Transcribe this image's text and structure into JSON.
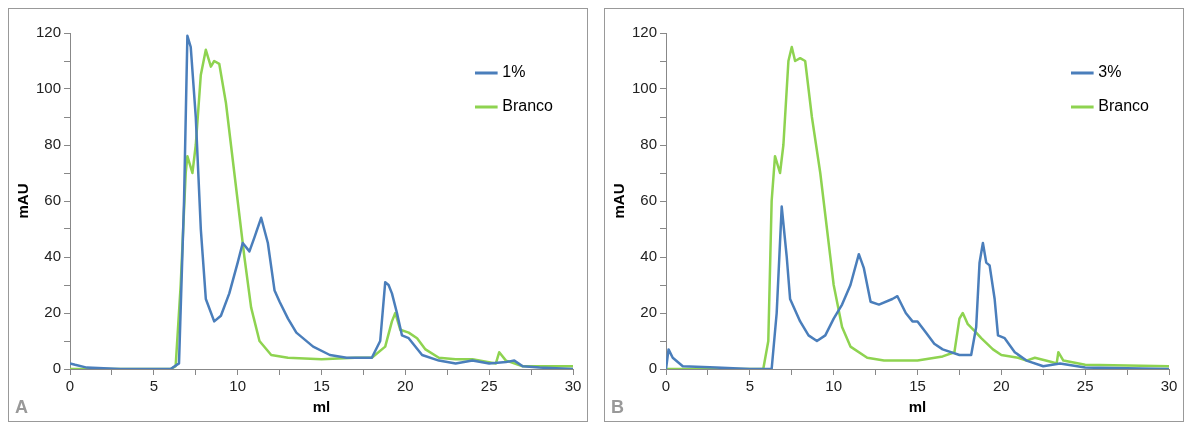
{
  "chart_data": [
    {
      "type": "line",
      "xlabel": "ml",
      "ylabel": "mAU",
      "annotations": [
        "A"
      ],
      "legend": "top right",
      "grid": false,
      "marker": "none",
      "xlim": [
        0,
        30
      ],
      "ylim": [
        0,
        120
      ],
      "xticks": [
        0,
        {
          "value": 2.5,
          "label": null
        },
        5,
        {
          "value": 7.5,
          "label": null
        },
        10,
        {
          "value": 12.5,
          "label": null
        },
        15,
        {
          "value": 17.5,
          "label": null
        },
        20,
        {
          "value": 22.5,
          "label": null
        },
        25,
        {
          "value": 27.5,
          "label": null
        },
        30
      ],
      "yticks": [
        0,
        {
          "value": 10,
          "label": null
        },
        20,
        {
          "value": 30,
          "label": null
        },
        40,
        {
          "value": 50,
          "label": null
        },
        60,
        {
          "value": 70,
          "label": null
        },
        80,
        {
          "value": 90,
          "label": null
        },
        100,
        {
          "value": 110,
          "label": null
        },
        120
      ],
      "series": [
        {
          "name": "1%",
          "color": "#4a7ebb",
          "x": [
            0,
            0.3,
            1,
            3,
            6,
            6.5,
            6.8,
            7,
            7.2,
            7.5,
            7.8,
            8.1,
            8.6,
            9,
            9.5,
            10,
            10.3,
            10.7,
            11,
            11.4,
            11.8,
            12.2,
            12.5,
            13,
            13.5,
            14.5,
            15.5,
            16.5,
            18,
            18.5,
            18.8,
            19,
            19.2,
            19.5,
            19.8,
            20.2,
            21,
            22,
            23,
            24,
            25,
            26,
            26.5,
            27,
            28,
            30
          ],
          "values": [
            2,
            1.5,
            0.5,
            0,
            0,
            2,
            60,
            119,
            115,
            90,
            50,
            25,
            17,
            19,
            27,
            38,
            45,
            42,
            47,
            54,
            45,
            28,
            24,
            18,
            13,
            8,
            5,
            4,
            4,
            10,
            31,
            30,
            27,
            20,
            12,
            11,
            5,
            3,
            2,
            3,
            2,
            2.5,
            3,
            1,
            0.5,
            0
          ]
        },
        {
          "name": "Branco",
          "color": "#8ed350",
          "x": [
            0,
            6,
            6.3,
            6.6,
            6.9,
            7,
            7.3,
            7.5,
            7.8,
            8.1,
            8.4,
            8.6,
            8.9,
            9.3,
            9.6,
            10,
            10.4,
            10.8,
            11.3,
            12,
            13,
            15,
            17,
            18,
            18.8,
            19.2,
            19.4,
            19.7,
            20.2,
            20.7,
            21.2,
            22,
            23,
            24,
            25.4,
            25.6,
            26,
            27,
            30
          ],
          "values": [
            0,
            0,
            1,
            30,
            70,
            76,
            70,
            80,
            105,
            114,
            108,
            110,
            109,
            95,
            80,
            60,
            40,
            22,
            10,
            5,
            4,
            3.5,
            4,
            4,
            8,
            17,
            20,
            14,
            13,
            11,
            7,
            4,
            3.5,
            3.5,
            2,
            6,
            3,
            1,
            1
          ]
        }
      ]
    },
    {
      "type": "line",
      "xlabel": "ml",
      "ylabel": "mAU",
      "annotations": [
        "B"
      ],
      "legend": "top right",
      "grid": false,
      "marker": "none",
      "xlim": [
        0,
        30
      ],
      "ylim": [
        0,
        120
      ],
      "xticks": [
        0,
        {
          "value": 2.5,
          "label": null
        },
        5,
        {
          "value": 7.5,
          "label": null
        },
        10,
        {
          "value": 12.5,
          "label": null
        },
        15,
        {
          "value": 17.5,
          "label": null
        },
        20,
        {
          "value": 22.5,
          "label": null
        },
        25,
        {
          "value": 27.5,
          "label": null
        },
        30
      ],
      "yticks": [
        0,
        {
          "value": 10,
          "label": null
        },
        20,
        {
          "value": 30,
          "label": null
        },
        40,
        {
          "value": 50,
          "label": null
        },
        60,
        {
          "value": 70,
          "label": null
        },
        80,
        {
          "value": 90,
          "label": null
        },
        100,
        {
          "value": 110,
          "label": null
        },
        120
      ],
      "series": [
        {
          "name": "3%",
          "color": "#4a7ebb",
          "x": [
            0,
            0.15,
            0.4,
            1,
            3,
            5,
            6.3,
            6.6,
            6.9,
            7.2,
            7.4,
            8,
            8.5,
            9,
            9.5,
            10,
            10.5,
            11,
            11.5,
            11.8,
            12.2,
            12.7,
            13.5,
            13.8,
            14.3,
            14.7,
            15,
            15.5,
            16,
            16.5,
            17.5,
            18.2,
            18.5,
            18.7,
            18.9,
            19.1,
            19.3,
            19.6,
            19.8,
            20.2,
            20.8,
            21.5,
            22.5,
            23.5,
            25,
            30
          ],
          "values": [
            0,
            7,
            4,
            1,
            0.5,
            0,
            0,
            20,
            58,
            40,
            25,
            17,
            12,
            10,
            12,
            18,
            23,
            30,
            41,
            36,
            24,
            23,
            25,
            26,
            20,
            17,
            17,
            13,
            9,
            7,
            5,
            5,
            15,
            38,
            45,
            38,
            37,
            25,
            12,
            11,
            6,
            3,
            1,
            2,
            0.5,
            0
          ]
        },
        {
          "name": "Branco",
          "color": "#8ed350",
          "x": [
            0,
            5.8,
            6.1,
            6.3,
            6.5,
            6.8,
            7,
            7.3,
            7.5,
            7.7,
            8,
            8.3,
            8.7,
            9.2,
            9.6,
            10,
            10.5,
            11,
            12,
            13,
            15,
            16.5,
            17.2,
            17.5,
            17.7,
            18,
            18.5,
            18.8,
            19.5,
            20,
            21,
            21.5,
            22,
            23,
            23.3,
            23.4,
            23.7,
            25,
            30
          ],
          "values": [
            0,
            0,
            10,
            60,
            76,
            70,
            80,
            110,
            115,
            110,
            111,
            110,
            90,
            70,
            50,
            30,
            15,
            8,
            4,
            3,
            3,
            4.5,
            6,
            18,
            20,
            16,
            13,
            11,
            7,
            5,
            4,
            3,
            4,
            2.5,
            2,
            6,
            3,
            1.5,
            1
          ]
        }
      ]
    }
  ]
}
